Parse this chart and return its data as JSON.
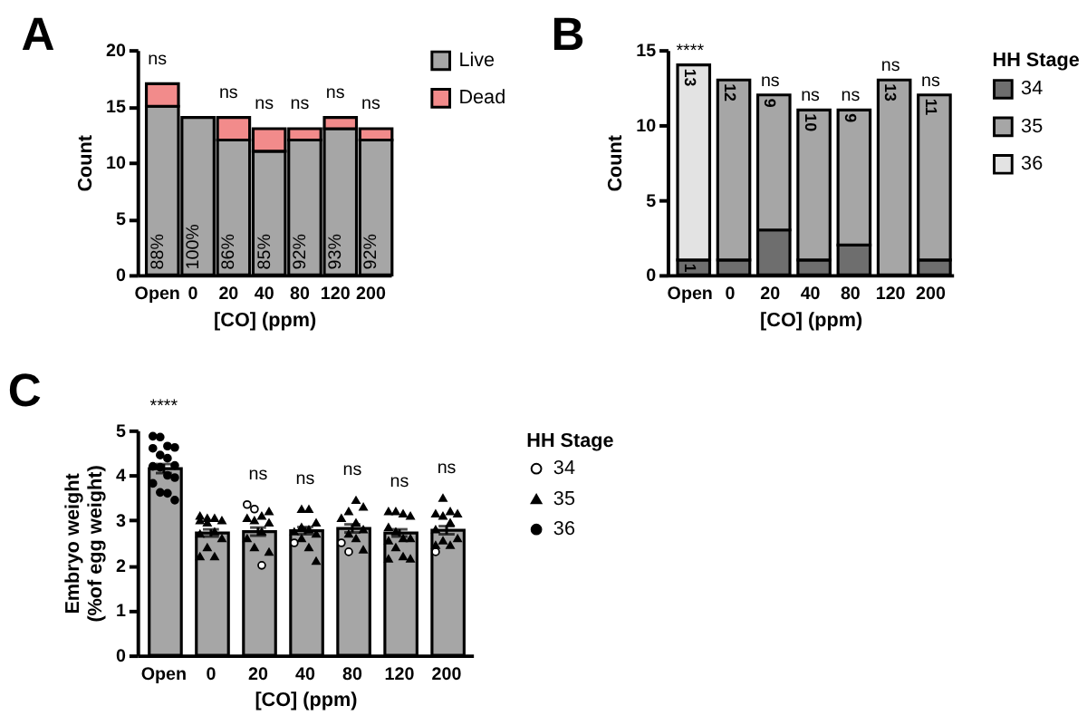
{
  "chart_data": [
    {
      "type": "bar",
      "title": "A",
      "xlabel": "[CO] (ppm)",
      "ylabel": "Count",
      "categories": [
        "Open",
        "0",
        "20",
        "40",
        "80",
        "120",
        "200"
      ],
      "stacked": true,
      "legend": "top right",
      "series": [
        {
          "name": "Live",
          "color": "#a6a6a6",
          "values": [
            15,
            14,
            12,
            11,
            12,
            13,
            12
          ]
        },
        {
          "name": "Dead",
          "color": "#f28b8b",
          "values": [
            2,
            null,
            2,
            2,
            1,
            1,
            1
          ]
        }
      ],
      "ylim": [
        0,
        20
      ],
      "yticks": [
        0,
        5,
        10,
        15,
        20
      ],
      "annotations": [
        {
          "text": "ns",
          "x": "Open",
          "y": 17
        },
        {
          "text": "ns",
          "x": "20",
          "y": 14
        },
        {
          "text": "ns",
          "x": "40",
          "y": 13
        },
        {
          "text": "ns",
          "x": "80",
          "y": 13
        },
        {
          "text": "ns",
          "x": "120",
          "y": 14
        },
        {
          "text": "ns",
          "x": "200",
          "y": 13
        },
        {
          "text": "88%",
          "x": "Open",
          "y": 0
        },
        {
          "text": "100%",
          "x": "0",
          "y": 0
        },
        {
          "text": "86%",
          "x": "20",
          "y": 0
        },
        {
          "text": "85%",
          "x": "40",
          "y": 0
        },
        {
          "text": "92%",
          "x": "80",
          "y": 0
        },
        {
          "text": "93%",
          "x": "120",
          "y": 0
        },
        {
          "text": "92%",
          "x": "200",
          "y": 0
        }
      ]
    },
    {
      "type": "bar",
      "title": "B",
      "xlabel": "[CO] (ppm)",
      "ylabel": "Count",
      "legend_title": "HH Stage",
      "categories": [
        "Open",
        "0",
        "20",
        "40",
        "80",
        "120",
        "200"
      ],
      "stacked": true,
      "legend": "top right",
      "series": [
        {
          "name": "34",
          "color": "#6e6e6e",
          "values": [
            1,
            1,
            3,
            1,
            2,
            null,
            1
          ],
          "value_labels": [
            "1",
            null,
            null,
            null,
            null,
            null,
            null
          ]
        },
        {
          "name": "35",
          "color": "#a6a6a6",
          "values": [
            null,
            12,
            9,
            10,
            9,
            13,
            11
          ],
          "value_labels": [
            null,
            "12",
            "9",
            "10",
            "9",
            "13",
            "11"
          ]
        },
        {
          "name": "36",
          "color": "#e3e3e3",
          "values": [
            13,
            null,
            null,
            null,
            null,
            null,
            null
          ],
          "value_labels": [
            "13",
            null,
            null,
            null,
            null,
            null,
            null
          ]
        }
      ],
      "ylim": [
        0,
        15
      ],
      "yticks": [
        0,
        5,
        10,
        15
      ],
      "annotations": [
        {
          "text": "****",
          "x": "Open",
          "y": 14
        },
        {
          "text": "ns",
          "x": "20",
          "y": 12
        },
        {
          "text": "ns",
          "x": "40",
          "y": 11
        },
        {
          "text": "ns",
          "x": "80",
          "y": 11
        },
        {
          "text": "ns",
          "x": "120",
          "y": 13
        },
        {
          "text": "ns",
          "x": "200",
          "y": 12
        }
      ]
    },
    {
      "type": "bar",
      "title": "C",
      "xlabel": "[CO] (ppm)",
      "ylabel": "Embryo weight\n(%of egg weight)",
      "legend_title": "HH Stage",
      "categories": [
        "Open",
        "0",
        "20",
        "40",
        "80",
        "120",
        "200"
      ],
      "legend": "top right",
      "series": [
        {
          "type": "bar",
          "color": "#a6a6a6",
          "values": [
            4.15,
            2.72,
            2.75,
            2.77,
            2.82,
            2.72,
            2.78
          ],
          "errors": [
            0.1,
            0.08,
            0.09,
            0.08,
            0.09,
            0.08,
            0.09
          ]
        },
        {
          "type": "scatter",
          "name": "34",
          "marker": "circle",
          "color": "#ffffff",
          "x": [
            "20",
            "20",
            "20",
            "40",
            "80",
            "80",
            "200"
          ],
          "values": [
            3.35,
            3.25,
            2.0,
            2.5,
            2.5,
            2.3,
            2.3
          ]
        },
        {
          "type": "scatter",
          "name": "35",
          "marker": "triangle",
          "color": "#000000",
          "x": [
            "0",
            "0",
            "0",
            "0",
            "0",
            "0",
            "0",
            "0",
            "0",
            "0",
            "0",
            "0",
            "20",
            "20",
            "20",
            "20",
            "20",
            "20",
            "20",
            "20",
            "20",
            "40",
            "40",
            "40",
            "40",
            "40",
            "40",
            "40",
            "40",
            "40",
            "40",
            "80",
            "80",
            "80",
            "80",
            "80",
            "80",
            "80",
            "80",
            "80",
            "120",
            "120",
            "120",
            "120",
            "120",
            "120",
            "120",
            "120",
            "120",
            "120",
            "120",
            "120",
            "120",
            "200",
            "200",
            "200",
            "200",
            "200",
            "200",
            "200",
            "200",
            "200",
            "200",
            "200"
          ],
          "values": [
            3.1,
            3.05,
            3.05,
            3.0,
            3.0,
            2.95,
            2.75,
            2.7,
            2.6,
            2.4,
            2.2,
            2.2,
            3.2,
            3.1,
            3.05,
            3.0,
            2.95,
            2.75,
            2.6,
            2.4,
            2.3,
            3.25,
            3.25,
            2.95,
            2.85,
            2.8,
            2.75,
            2.7,
            2.6,
            2.4,
            2.1,
            3.45,
            3.3,
            3.2,
            3.05,
            2.95,
            2.8,
            2.7,
            2.6,
            2.35,
            3.2,
            3.2,
            3.15,
            3.1,
            2.85,
            2.75,
            2.6,
            2.6,
            2.55,
            2.4,
            2.2,
            2.15,
            2.15,
            3.5,
            3.2,
            3.15,
            3.15,
            3.1,
            2.95,
            2.8,
            2.6,
            2.55,
            2.45,
            2.45
          ]
        },
        {
          "type": "scatter",
          "name": "36",
          "marker": "circle",
          "color": "#000000",
          "x": [
            "Open",
            "Open",
            "Open",
            "Open",
            "Open",
            "Open",
            "Open",
            "Open",
            "Open",
            "Open",
            "Open",
            "Open",
            "Open",
            "Open",
            "Open",
            "Open"
          ],
          "values": [
            4.87,
            4.85,
            4.65,
            4.62,
            4.6,
            4.45,
            4.38,
            4.22,
            4.2,
            4.18,
            4.0,
            3.95,
            3.82,
            3.62,
            3.6,
            3.45
          ]
        }
      ],
      "ylim": [
        0,
        5
      ],
      "yticks": [
        0,
        1,
        2,
        3,
        4,
        5
      ],
      "annotations": [
        {
          "text": "****",
          "x": "Open",
          "y": 4.87
        },
        {
          "text": "ns",
          "x": "20",
          "y": 3.35
        },
        {
          "text": "ns",
          "x": "40",
          "y": 3.25
        },
        {
          "text": "ns",
          "x": "80",
          "y": 3.45
        },
        {
          "text": "ns",
          "x": "120",
          "y": 3.2
        },
        {
          "text": "ns",
          "x": "200",
          "y": 3.5
        }
      ]
    }
  ]
}
